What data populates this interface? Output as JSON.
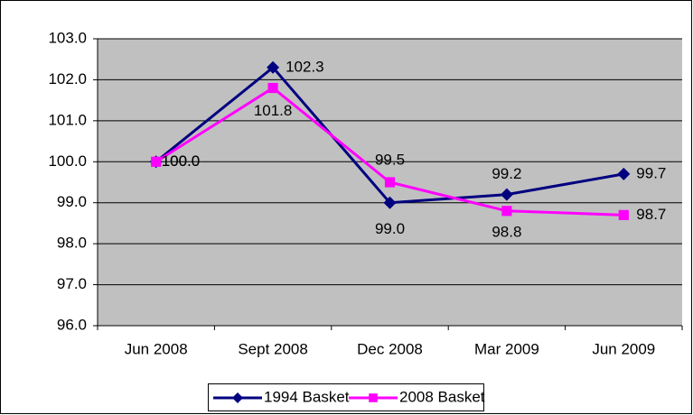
{
  "chart_data": {
    "type": "line",
    "categories": [
      "Jun 2008",
      "Sept 2008",
      "Dec 2008",
      "Mar 2009",
      "Jun 2009"
    ],
    "series": [
      {
        "name": "1994 Basket",
        "color": "#000080",
        "marker": "diamond",
        "values": [
          100.0,
          102.3,
          99.0,
          99.2,
          99.7
        ],
        "value_labels": [
          "100.0",
          "102.3",
          "99.0",
          "99.2",
          "99.7"
        ]
      },
      {
        "name": "2008 Basket",
        "color": "#ff00ff",
        "marker": "square",
        "values": [
          100.0,
          101.8,
          99.5,
          98.8,
          98.7
        ],
        "value_labels": [
          "100.0",
          "101.8",
          "99.5",
          "98.8",
          "98.7"
        ]
      }
    ],
    "ylim": [
      96,
      103
    ],
    "yticks": [
      {
        "value": 96,
        "label": "96.0"
      },
      {
        "value": 97,
        "label": "97.0"
      },
      {
        "value": 98,
        "label": "98.0"
      },
      {
        "value": 99,
        "label": "99.0"
      },
      {
        "value": 100,
        "label": "100.0"
      },
      {
        "value": 101,
        "label": "101.0"
      },
      {
        "value": 102,
        "label": "102.0"
      },
      {
        "value": 103,
        "label": "103.0"
      }
    ],
    "grid": true,
    "plot_background": "#c0c0c0",
    "legend": "bottom"
  }
}
